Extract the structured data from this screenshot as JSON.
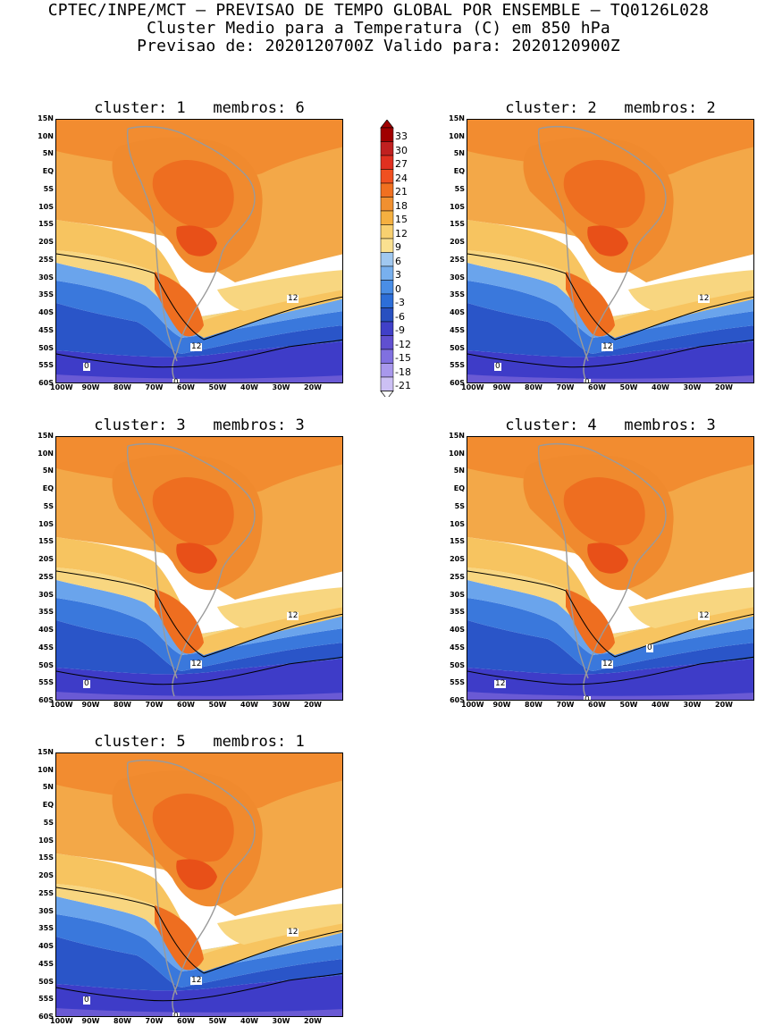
{
  "header": {
    "line1": "CPTEC/INPE/MCT – PREVISAO DE TEMPO GLOBAL POR ENSEMBLE – TQ0126L028",
    "line2": "Cluster Medio para a Temperatura (C) em 850 hPa",
    "line3": "Previsao de: 2020120700Z    Valido para: 2020120900Z"
  },
  "axes": {
    "y_labels": [
      "15N",
      "10N",
      "5N",
      "EQ",
      "5S",
      "10S",
      "15S",
      "20S",
      "25S",
      "30S",
      "35S",
      "40S",
      "45S",
      "50S",
      "55S",
      "60S"
    ],
    "x_labels": [
      "100W",
      "90W",
      "80W",
      "70W",
      "60W",
      "50W",
      "40W",
      "30W",
      "20W"
    ]
  },
  "colorbar": {
    "labels": [
      "33",
      "30",
      "27",
      "24",
      "21",
      "18",
      "15",
      "12",
      "9",
      "6",
      "3",
      "0",
      "-3",
      "-6",
      "-9",
      "-12",
      "-15",
      "-18",
      "-21"
    ],
    "colors": [
      "#a00000",
      "#c02020",
      "#e03020",
      "#f05020",
      "#f07020",
      "#f09030",
      "#f5b040",
      "#f8d070",
      "#fae090",
      "#a0c8f0",
      "#78b0ee",
      "#4a8ee6",
      "#2d6ed8",
      "#2850c0",
      "#4040c8",
      "#6050d0",
      "#8070e0",
      "#a898ec",
      "#ccc0f4"
    ]
  },
  "panels": [
    {
      "title": "cluster: 1   membros: 6",
      "contour_labels": [
        "12",
        "12",
        "0",
        "0"
      ]
    },
    {
      "title": "cluster: 2   membros: 2",
      "contour_labels": [
        "12",
        "12",
        "0",
        "0"
      ]
    },
    {
      "title": "cluster: 3   membros: 3",
      "contour_labels": [
        "12",
        "12",
        "0"
      ]
    },
    {
      "title": "cluster: 4   membros: 3",
      "contour_labels": [
        "12",
        "12",
        "12",
        "0",
        "0"
      ]
    },
    {
      "title": "cluster: 5   membros: 1",
      "contour_labels": [
        "12",
        "12",
        "0",
        "0"
      ]
    }
  ]
}
